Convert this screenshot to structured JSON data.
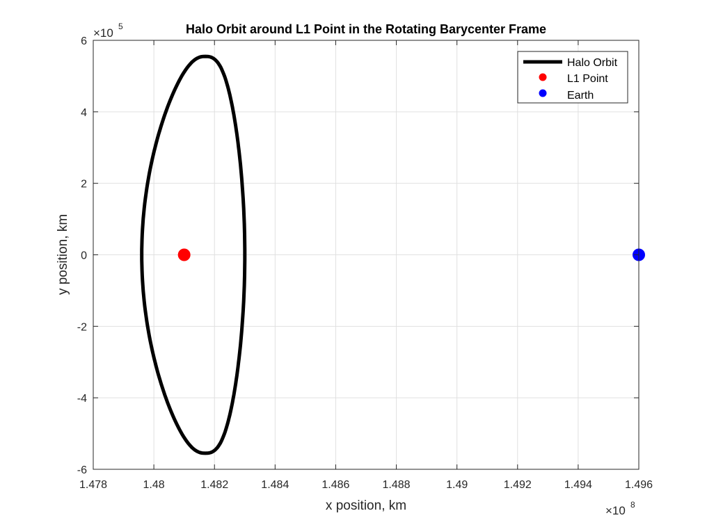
{
  "chart_data": {
    "type": "line",
    "title": "Halo Orbit around L1 Point in the Rotating Barycenter Frame",
    "xlabel": "x position, km",
    "ylabel": "y position, km",
    "xlim": [
      147800000,
      149600000
    ],
    "ylim": [
      -600000,
      600000
    ],
    "x_ticks": [
      "1.478",
      "1.48",
      "1.482",
      "1.484",
      "1.486",
      "1.488",
      "1.49",
      "1.492",
      "1.494",
      "1.496"
    ],
    "y_ticks": [
      "-6",
      "-4",
      "-2",
      "0",
      "2",
      "4",
      "6"
    ],
    "x_multiplier": {
      "base": "×10",
      "exponent": "8"
    },
    "y_multiplier": {
      "base": "×10",
      "exponent": "5"
    },
    "grid": true,
    "legend_position": "top-right",
    "series": [
      {
        "name": "Halo Orbit",
        "kind": "closed-curve",
        "color": "#000000",
        "orbit": {
          "x_min": 147960000,
          "x_max": 148300000,
          "y_min": -555000,
          "y_max": 555000,
          "x_at_y_extremes": 148170000
        }
      },
      {
        "name": "L1 Point",
        "kind": "point",
        "color": "#ff0000",
        "x": 148100000,
        "y": 0
      },
      {
        "name": "Earth",
        "kind": "point",
        "color": "#0000ff",
        "x": 149600000,
        "y": 0
      }
    ]
  }
}
